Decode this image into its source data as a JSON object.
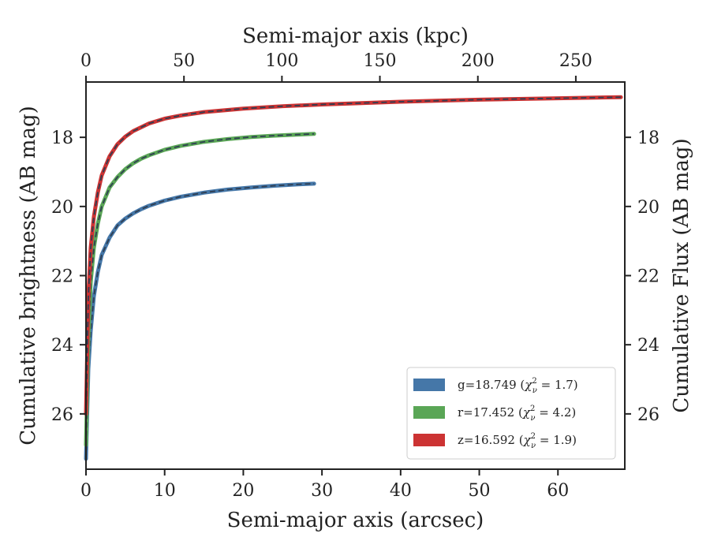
{
  "chart_data": {
    "type": "line",
    "title": "",
    "xlabel": "Semi-major axis (arcsec)",
    "xlabel_top": "Semi-major axis (kpc)",
    "ylabel": "Cumulative brightness (AB mag)",
    "ylabel_right": "Cumulative Flux (AB mag)",
    "xlim": [
      0,
      68.5
    ],
    "ylim": [
      27.6,
      16.4
    ],
    "y_inverted": true,
    "x_ticks": [
      0,
      10,
      20,
      30,
      40,
      50,
      60
    ],
    "x_tick_labels": [
      "0",
      "10",
      "20",
      "30",
      "40",
      "50",
      "60"
    ],
    "x_top_ticks": [
      0,
      50,
      100,
      150,
      200,
      250
    ],
    "x_top_tick_labels": [
      "0",
      "50",
      "100",
      "150",
      "200",
      "250"
    ],
    "x_top_lim": [
      0,
      275
    ],
    "y_ticks": [
      18,
      20,
      22,
      24,
      26
    ],
    "y_tick_labels": [
      "18",
      "20",
      "22",
      "24",
      "26"
    ],
    "grid": false,
    "legend_position": "bottom-right",
    "series": [
      {
        "name": "g=18.749 ($\\chi^2_\\nu=1.7$)",
        "legend_prefix": "g=18.749 (",
        "legend_chi": "χ",
        "legend_sup": "2",
        "legend_sub": "ν",
        "legend_suffix": " = 1.7)",
        "color": "#4577a8",
        "model_color": "#2f3e52",
        "x": [
          0,
          0.3,
          0.6,
          1,
          1.5,
          2,
          3,
          4,
          5,
          6,
          7,
          8,
          10,
          12,
          15,
          18,
          21,
          24,
          27,
          29
        ],
        "y": [
          27.3,
          24.7,
          23.6,
          22.6,
          21.9,
          21.4,
          20.9,
          20.55,
          20.35,
          20.2,
          20.08,
          19.98,
          19.83,
          19.72,
          19.6,
          19.51,
          19.45,
          19.4,
          19.36,
          19.34
        ]
      },
      {
        "name": "r=17.452 ($\\chi^2_\\nu=4.2$)",
        "legend_prefix": "r=17.452 (",
        "legend_chi": "χ",
        "legend_sup": "2",
        "legend_sub": "ν",
        "legend_suffix": " = 4.2)",
        "color": "#5aa656",
        "model_color": "#2f3e52",
        "x": [
          0,
          0.3,
          0.6,
          1,
          1.5,
          2,
          3,
          4,
          5,
          6,
          7,
          8,
          10,
          12,
          15,
          18,
          21,
          24,
          27,
          29
        ],
        "y": [
          26.9,
          23.8,
          22.2,
          21.2,
          20.5,
          20.0,
          19.45,
          19.15,
          18.92,
          18.75,
          18.62,
          18.52,
          18.36,
          18.25,
          18.13,
          18.05,
          17.99,
          17.95,
          17.92,
          17.9
        ]
      },
      {
        "name": "z=16.592 ($\\chi^2_\\nu=1.9$)",
        "legend_prefix": "z=16.592 (",
        "legend_chi": "χ",
        "legend_sup": "2",
        "legend_sub": "ν",
        "legend_suffix": " = 1.9)",
        "color": "#cc3333",
        "model_color": "#2f3e52",
        "x": [
          0,
          0.3,
          0.6,
          1,
          1.5,
          2,
          3,
          4,
          5,
          6,
          8,
          10,
          12,
          15,
          20,
          25,
          30,
          35,
          40,
          45,
          50,
          55,
          60,
          65,
          68
        ],
        "y": [
          26.0,
          22.6,
          21.2,
          20.3,
          19.6,
          19.1,
          18.55,
          18.2,
          17.98,
          17.82,
          17.6,
          17.46,
          17.37,
          17.27,
          17.17,
          17.1,
          17.05,
          17.01,
          16.97,
          16.94,
          16.91,
          16.89,
          16.87,
          16.85,
          16.84
        ]
      }
    ]
  }
}
